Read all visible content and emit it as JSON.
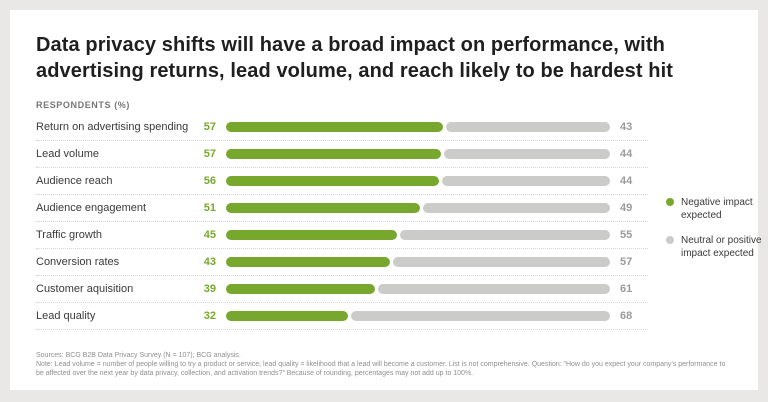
{
  "page": {
    "title": "Data privacy shifts will have a broad impact on performance, with advertising returns, lead volume, and reach likely to be hardest hit",
    "axis_label": "RESPONDENTS (%)"
  },
  "legend": {
    "items": [
      {
        "label": "Negative impact expected"
      },
      {
        "label": "Neutral or positive impact expected"
      }
    ]
  },
  "footer": {
    "sources": "Sources: BCG B2B Data Privacy Survey (N = 107); BCG analysis.",
    "note": "Note: Lead volume = number of people willing to try a product or service; lead quality = likelihood that a lead will become a customer. List is not comprehensive. Question: “How do you expect your company’s performance to be affected over the next year by data privacy, collection, and activation trends?” Because of rounding, percentages may not add up to 100%."
  },
  "chart_data": {
    "type": "bar",
    "orientation": "horizontal",
    "stacked": true,
    "title": "Data privacy shifts will have a broad impact on performance, with advertising returns, lead volume, and reach likely to be hardest hit",
    "xlabel": "RESPONDENTS (%)",
    "xlim": [
      0,
      100
    ],
    "categories": [
      "Return on advertising spending",
      "Lead volume",
      "Audience reach",
      "Audience engagement",
      "Traffic growth",
      "Conversion rates",
      "Customer aquisition",
      "Lead quality"
    ],
    "series": [
      {
        "name": "Negative impact expected",
        "color": "#78a72e",
        "text_color": "#78a72e",
        "values": [
          57,
          57,
          56,
          51,
          45,
          43,
          39,
          32
        ]
      },
      {
        "name": "Neutral or positive impact expected",
        "color": "#cbcbca",
        "text_color": "#9b9b9b",
        "values": [
          43,
          44,
          44,
          49,
          55,
          57,
          61,
          68
        ]
      }
    ],
    "legend_position": "right",
    "grid": false
  }
}
